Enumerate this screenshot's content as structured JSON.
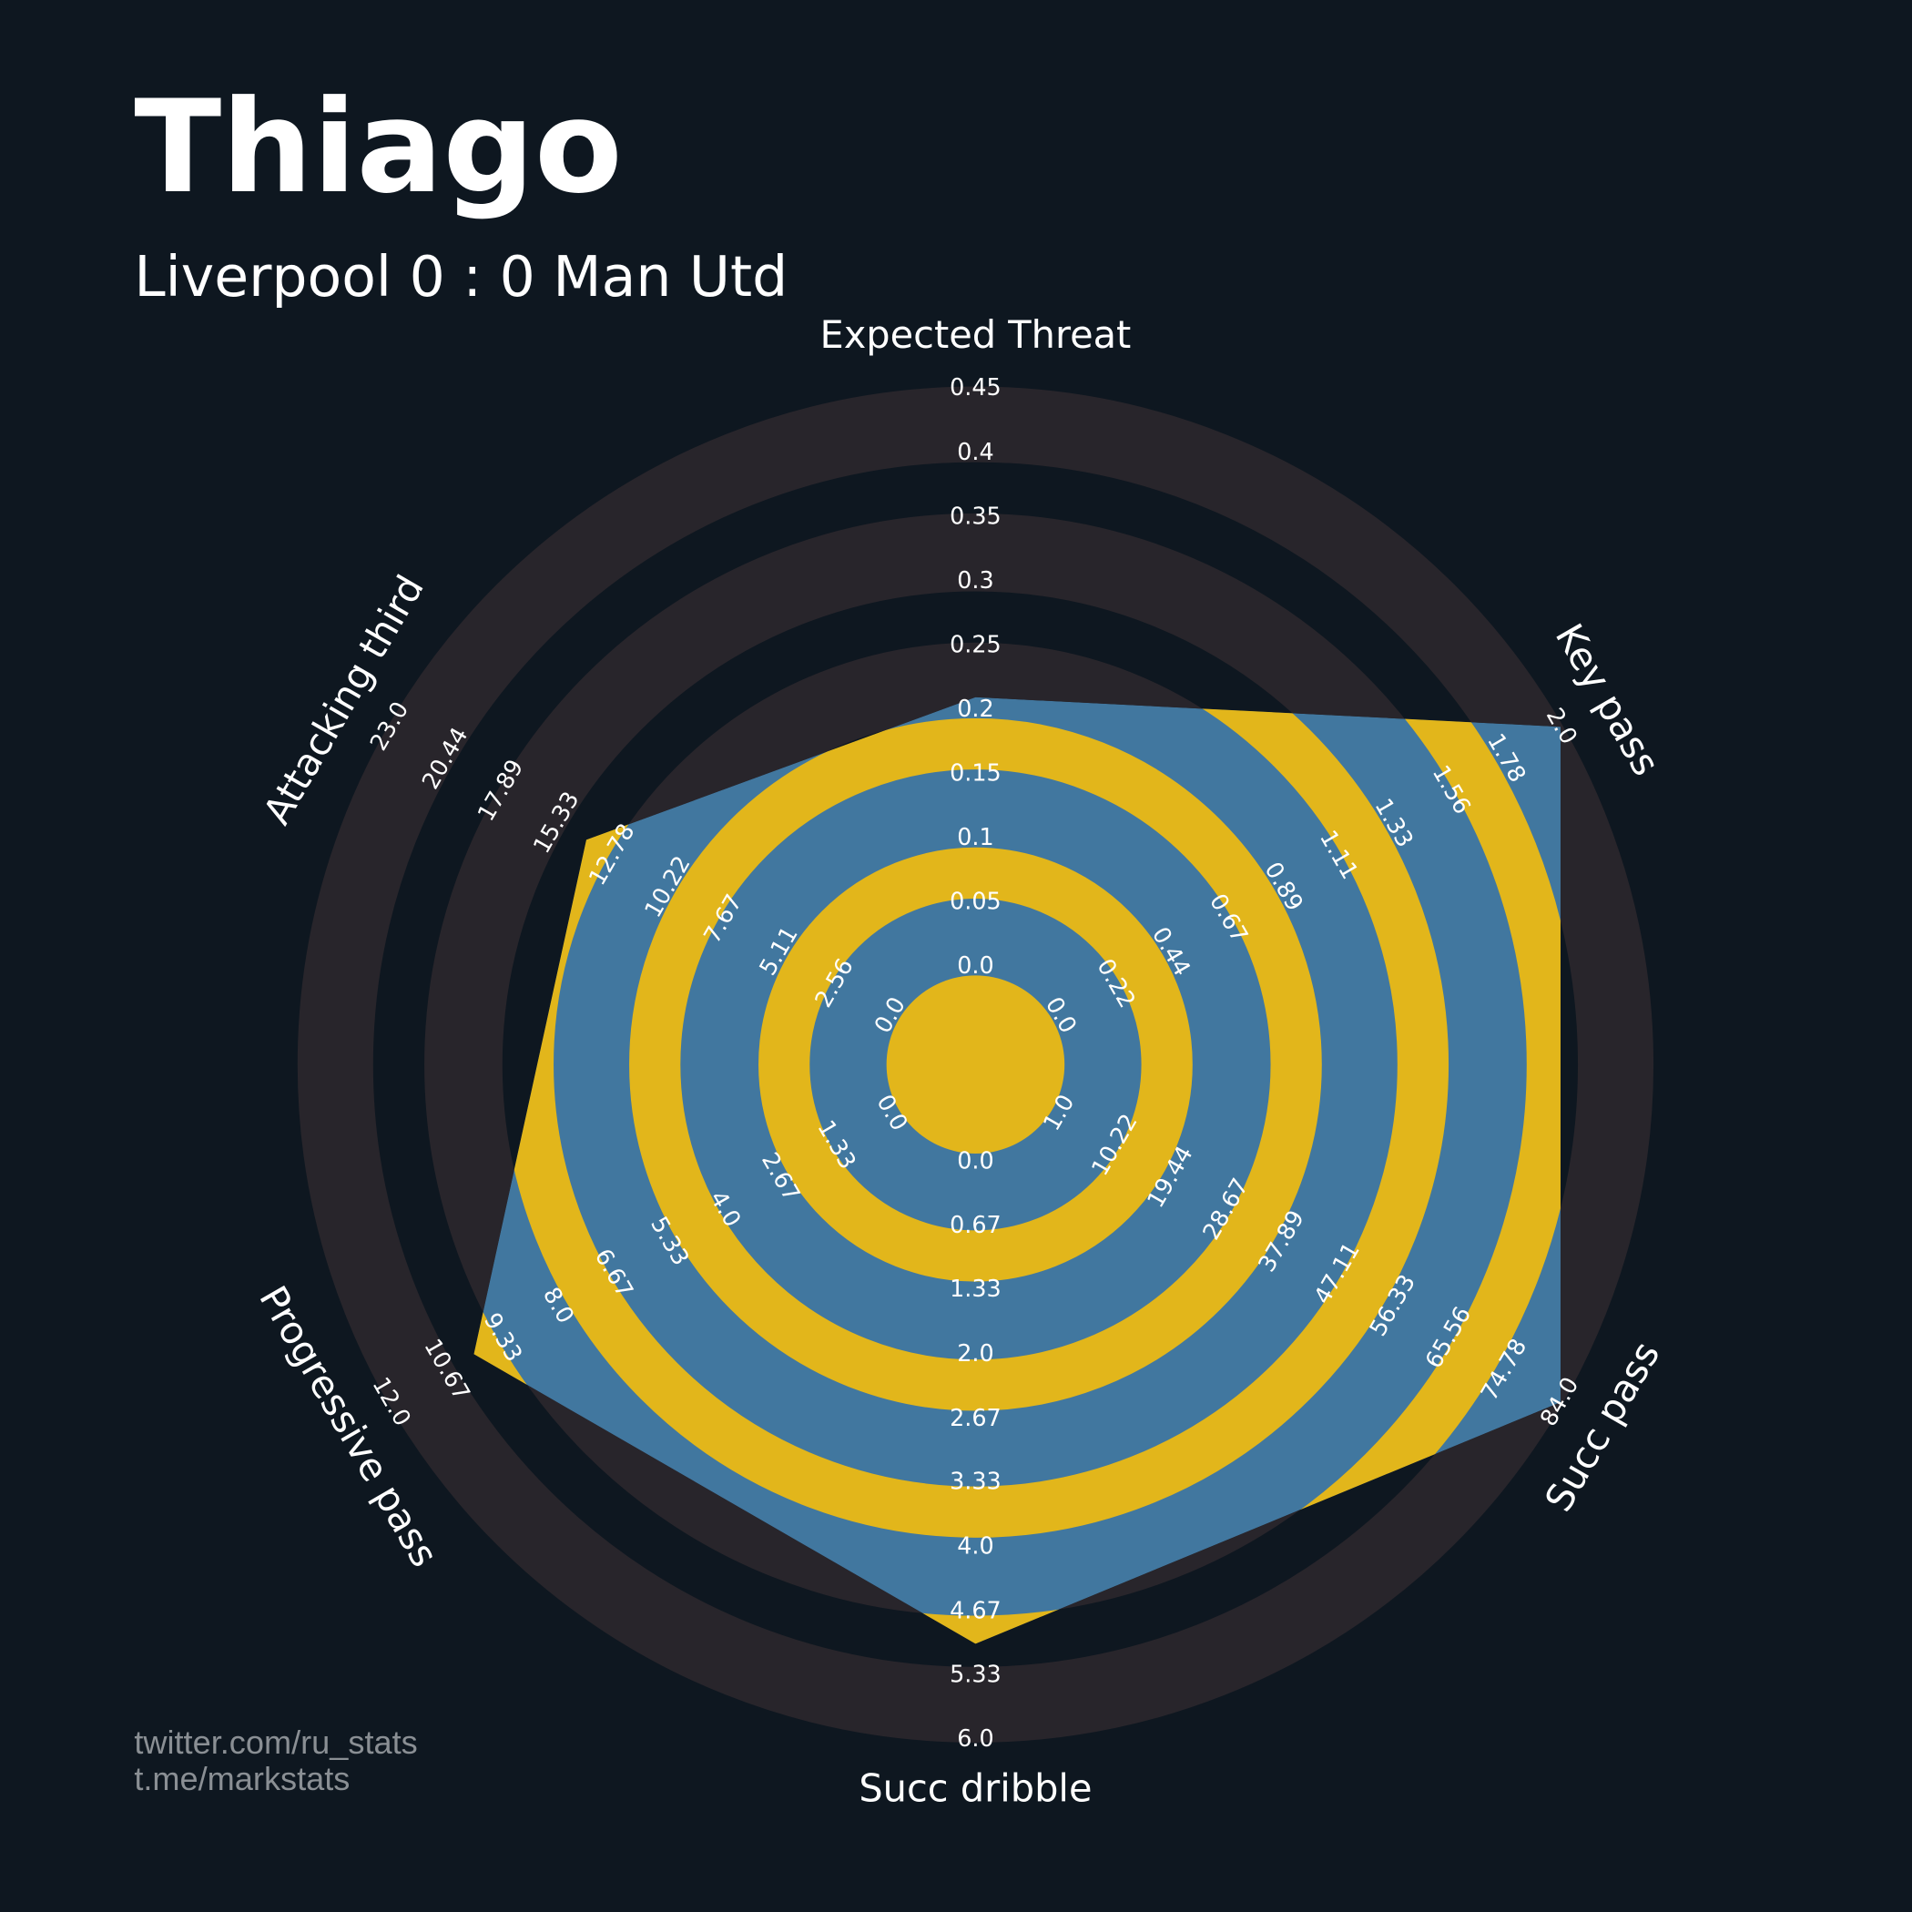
{
  "chart_data": {
    "type": "radar",
    "title": "Thiago",
    "subtitle": "Liverpool 0 : 0 Man Utd",
    "footer": [
      "twitter.com/ru_stats",
      "t.me/markstats"
    ],
    "colors": {
      "background": "#0e1720",
      "rings": "#28252b",
      "fill": "#41779f",
      "rings_inner": "#e2b61b"
    },
    "params": [
      "Expected Threat",
      "Key pass",
      "Succ pass",
      "Succ dribble",
      "Progressive pass",
      "Attacking third"
    ],
    "lims": [
      [
        0,
        0.45
      ],
      [
        0,
        2
      ],
      [
        1,
        84
      ],
      [
        0,
        6
      ],
      [
        0,
        12
      ],
      [
        0,
        23
      ]
    ],
    "ticks": [
      [
        {
          "value": 0,
          "label": "0.0"
        },
        0.05,
        0.1,
        0.15,
        0.2,
        0.25,
        0.3,
        0.35,
        0.4,
        0.45
      ],
      [
        {
          "value": 0,
          "label": "0.0"
        },
        0.22,
        0.44,
        0.67,
        0.89,
        1.11,
        1.33,
        1.56,
        1.78,
        {
          "value": 2,
          "label": "2.0"
        }
      ],
      [
        {
          "value": 1,
          "label": "1.0"
        },
        10.22,
        19.44,
        28.67,
        37.89,
        47.11,
        56.33,
        65.56,
        74.78,
        {
          "value": 84,
          "label": "84.0"
        }
      ],
      [
        {
          "value": 0,
          "label": "0.0"
        },
        0.67,
        1.33,
        {
          "value": 2,
          "label": "2.0"
        },
        2.67,
        3.33,
        {
          "value": 4,
          "label": "4.0"
        },
        4.67,
        5.33,
        {
          "value": 6,
          "label": "6.0"
        }
      ],
      [
        {
          "value": 0,
          "label": "0.0"
        },
        1.33,
        2.67,
        {
          "value": 4,
          "label": "4.0"
        },
        5.33,
        6.67,
        {
          "value": 8,
          "label": "8.0"
        },
        9.33,
        10.67,
        {
          "value": 12,
          "label": "12.0"
        }
      ],
      [
        {
          "value": 0,
          "label": "0.0"
        },
        2.56,
        5.11,
        7.67,
        10.22,
        12.78,
        15.33,
        17.89,
        20.44,
        {
          "value": 23,
          "label": "23.0"
        }
      ]
    ],
    "values": [
      0.21,
      2,
      84,
      5,
      10,
      14
    ]
  }
}
